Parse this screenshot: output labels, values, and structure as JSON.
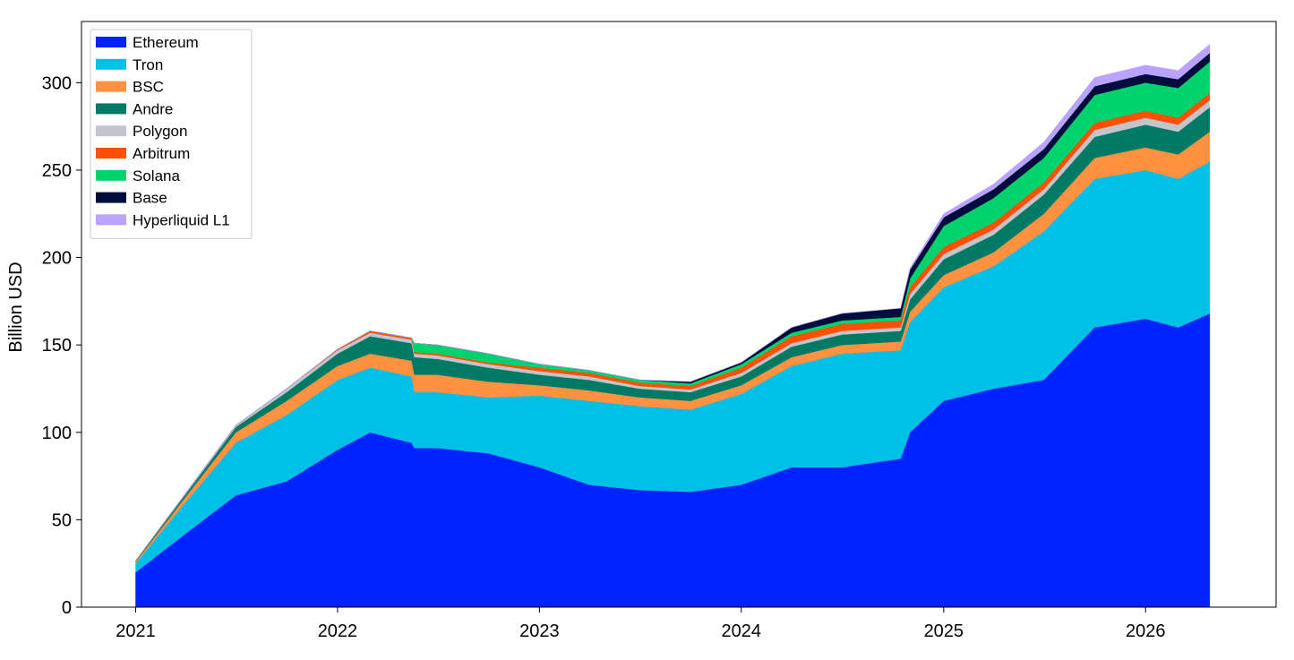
{
  "chart_data": {
    "type": "area",
    "stacked": true,
    "title": "",
    "xlabel": "",
    "ylabel": "Billion USD",
    "ylim": [
      0,
      335
    ],
    "xlim": [
      "2020-09-25",
      "2026-08-25"
    ],
    "yticks": [
      0,
      50,
      100,
      150,
      200,
      250,
      300
    ],
    "xticks": [
      "2021",
      "2022",
      "2023",
      "2024",
      "2025",
      "2026"
    ],
    "grid": false,
    "legend_position": "top-left",
    "x": [
      "2021-01-01",
      "2021-04-01",
      "2021-07-01",
      "2021-10-01",
      "2022-01-01",
      "2022-03-01",
      "2022-05-15",
      "2022-05-20",
      "2022-07-01",
      "2022-10-01",
      "2023-01-01",
      "2023-04-01",
      "2023-07-01",
      "2023-10-01",
      "2024-01-01",
      "2024-04-01",
      "2024-07-01",
      "2024-10-15",
      "2024-11-01",
      "2025-01-01",
      "2025-04-01",
      "2025-07-01",
      "2025-10-01",
      "2026-01-01",
      "2026-03-01",
      "2026-04-27"
    ],
    "series": [
      {
        "name": "Ethereum",
        "color": "#0022ff",
        "values": [
          20,
          42,
          64,
          72,
          90,
          100,
          94,
          91,
          91,
          88,
          80,
          70,
          67,
          66,
          70,
          80,
          80,
          85,
          100,
          118,
          125,
          130,
          160,
          165,
          160,
          168
        ]
      },
      {
        "name": "Tron",
        "color": "#00c0e8",
        "values": [
          5,
          18,
          30,
          38,
          40,
          37,
          38,
          32,
          32,
          32,
          41,
          48,
          48,
          47,
          52,
          58,
          65,
          62,
          63,
          65,
          70,
          85,
          85,
          85,
          85,
          87
        ]
      },
      {
        "name": "BSC",
        "color": "#ff9140",
        "values": [
          1,
          3,
          6,
          8,
          8,
          8,
          9,
          10,
          10,
          9,
          6,
          6,
          5,
          5,
          5,
          5,
          5,
          5,
          6,
          7,
          8,
          10,
          12,
          13,
          14,
          17
        ]
      },
      {
        "name": "Andre",
        "color": "#007a64",
        "values": [
          0.5,
          1.5,
          3,
          5,
          7,
          10,
          10,
          10,
          9,
          8,
          6,
          6,
          5,
          5,
          5,
          6,
          6,
          6,
          7,
          9,
          10,
          11,
          12,
          13,
          13,
          14
        ]
      },
      {
        "name": "Polygon",
        "color": "#c2c5cc",
        "values": [
          0,
          0.5,
          1,
          2,
          2,
          2,
          2,
          2,
          2,
          2,
          2,
          2,
          1.5,
          1.5,
          2,
          2,
          2,
          2,
          3,
          3,
          3,
          3,
          4,
          4,
          4,
          4
        ]
      },
      {
        "name": "Arbitrum",
        "color": "#ff5000",
        "values": [
          0,
          0,
          0,
          0,
          0.5,
          1,
          1,
          1,
          1,
          1,
          2,
          2,
          2,
          2,
          3,
          4,
          4,
          4,
          4,
          4,
          4,
          4,
          4,
          4,
          4,
          4
        ]
      },
      {
        "name": "Solana",
        "color": "#00d26e",
        "values": [
          0,
          0,
          0,
          0,
          0,
          0,
          0,
          5,
          5,
          5,
          2,
          1.5,
          1.5,
          1.5,
          2,
          2,
          2,
          2,
          5,
          12,
          14,
          14,
          16,
          16,
          17,
          18
        ]
      },
      {
        "name": "Base",
        "color": "#000c3c",
        "values": [
          0,
          0,
          0,
          0,
          0,
          0,
          0,
          0,
          0,
          0,
          0,
          0,
          0,
          1,
          1,
          3,
          4,
          5,
          5,
          5,
          5,
          5,
          5,
          5,
          5,
          5
        ]
      },
      {
        "name": "Hyperliquid L1",
        "color": "#b9a3ff",
        "values": [
          0,
          0,
          0,
          0,
          0,
          0,
          0,
          0,
          0,
          0,
          0,
          0,
          0,
          0,
          0,
          0,
          0,
          0,
          1,
          2,
          3,
          4,
          5,
          5,
          5,
          5
        ]
      }
    ]
  }
}
